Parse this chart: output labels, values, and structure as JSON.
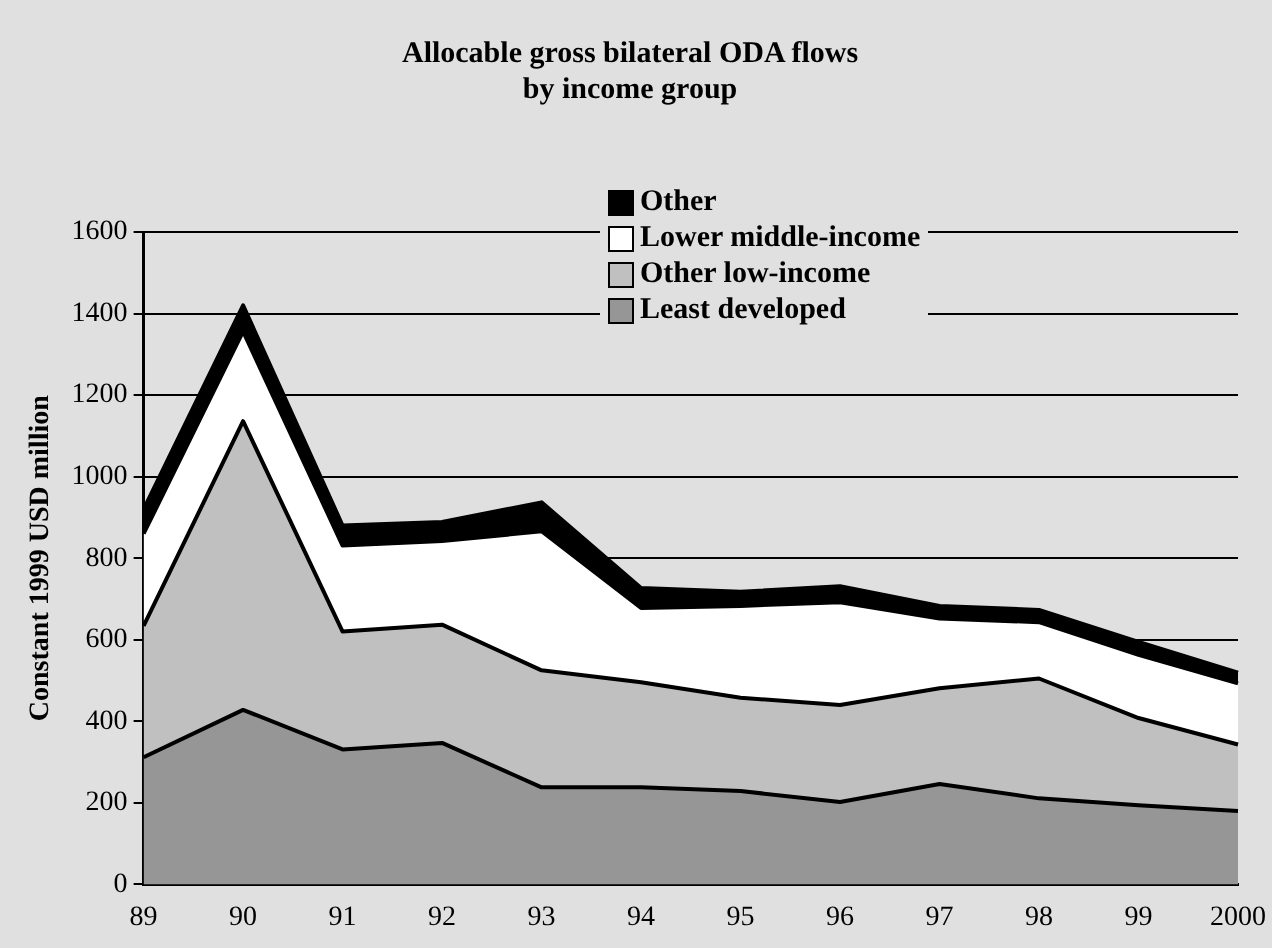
{
  "chart_data": {
    "type": "area",
    "title": "Allocable gross bilateral ODA flows\nby income group",
    "ylabel": "Constant 1999 USD million",
    "categories": [
      "89",
      "90",
      "91",
      "92",
      "93",
      "94",
      "95",
      "96",
      "97",
      "98",
      "99",
      "2000"
    ],
    "stacked": true,
    "ylim": [
      0,
      1600
    ],
    "yticks": [
      0,
      200,
      400,
      600,
      800,
      1000,
      1200,
      1400,
      1600
    ],
    "grid": "y",
    "legend": "top right",
    "series": [
      {
        "name": "Least developed",
        "color": "#969696",
        "values": [
          312,
          428,
          331,
          347,
          238,
          238,
          229,
          202,
          246,
          211,
          194,
          180
        ]
      },
      {
        "name": "Other low-income",
        "color": "#c0c0c0",
        "values": [
          322,
          708,
          289,
          290,
          287,
          258,
          229,
          238,
          235,
          294,
          214,
          163
        ]
      },
      {
        "name": "Lower middle-income",
        "color": "#ffffff",
        "values": [
          226,
          220,
          211,
          205,
          341,
          182,
          225,
          252,
          171,
          138,
          155,
          150
        ]
      },
      {
        "name": "Other",
        "color": "#000000",
        "values": [
          60,
          64,
          49,
          47,
          71,
          49,
          35,
          39,
          31,
          30,
          32,
          26
        ]
      }
    ]
  }
}
